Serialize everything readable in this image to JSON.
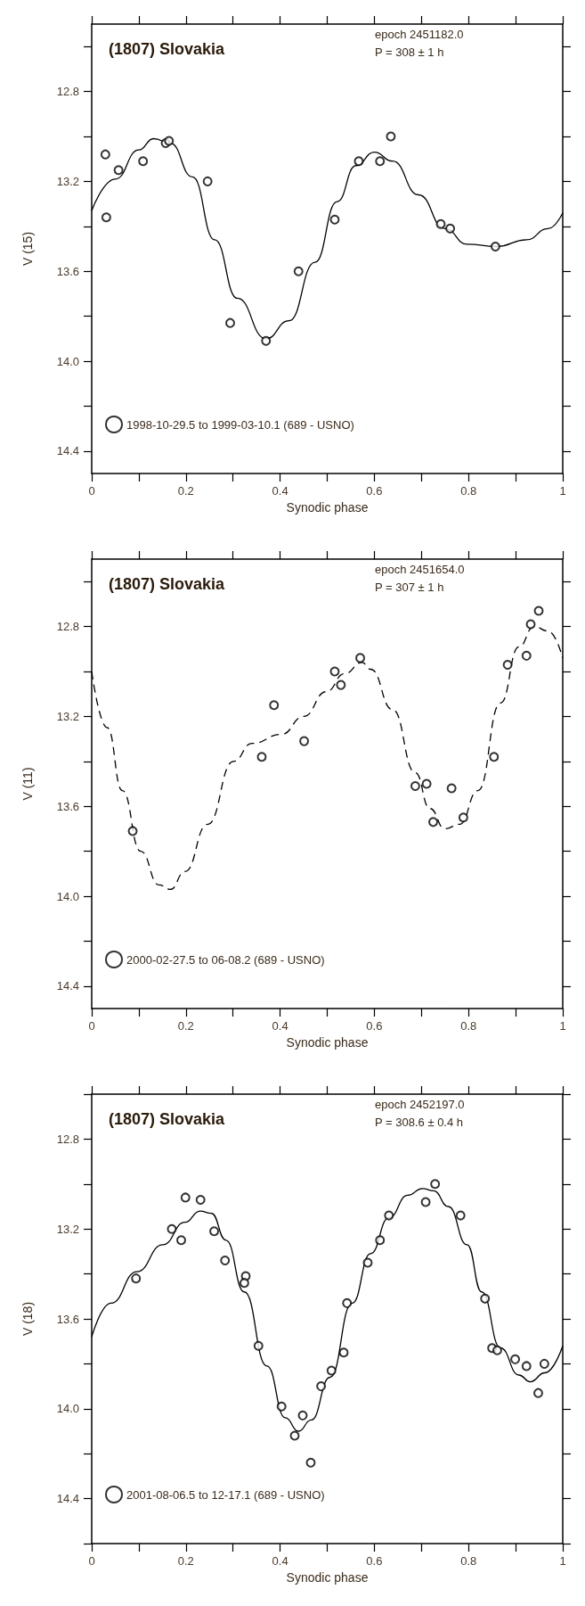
{
  "chart_data": [
    {
      "type": "scatter",
      "title": "(1807) Slovakia",
      "annotations": [
        "epoch 2451182.0",
        "P = 308 ± 1 h"
      ],
      "xlabel": "Synodic phase",
      "ylabel": "V (15)",
      "legend": "bottom left",
      "xlim": [
        0,
        1
      ],
      "xticks": [
        0,
        {
          "value": 0.1,
          "label": null
        },
        0.2,
        {
          "value": 0.3,
          "label": null
        },
        0.4,
        {
          "value": 0.5,
          "label": null
        },
        0.6,
        {
          "value": 0.7,
          "label": null
        },
        0.8,
        {
          "value": 0.9,
          "label": null
        },
        1
      ],
      "ylim": [
        14.5,
        12.5
      ],
      "yticks": [
        {
          "value": 12.6,
          "label": null
        },
        12.8,
        {
          "value": 13.0,
          "label": null
        },
        13.2,
        {
          "value": 13.4,
          "label": null
        },
        13.6,
        {
          "value": 13.8,
          "label": null
        },
        {
          "value": 14.0,
          "label": "14.0"
        },
        {
          "value": 14.2,
          "label": null
        },
        14.4
      ],
      "series": [
        {
          "name": "1998-10-29.5 to 1999-03-10.1 (689 - USNO)",
          "marker": "circle",
          "color": "#000000",
          "x": [
            0.029,
            0.031,
            0.057,
            0.109,
            0.157,
            0.164,
            0.246,
            0.294,
            0.37,
            0.439,
            0.516,
            0.567,
            0.612,
            0.635,
            0.741,
            0.761,
            0.857
          ],
          "values": [
            13.08,
            13.36,
            13.15,
            13.11,
            13.03,
            13.02,
            13.2,
            13.83,
            13.91,
            13.6,
            13.37,
            13.11,
            13.11,
            13.0,
            13.39,
            13.41,
            13.49
          ]
        },
        {
          "type": "line",
          "marker": "none",
          "color": "#000000",
          "line_style": "solid",
          "x": [
            0,
            0.05,
            0.1,
            0.131,
            0.167,
            0.214,
            0.261,
            0.309,
            0.37,
            0.419,
            0.474,
            0.521,
            0.561,
            0.6,
            0.639,
            0.694,
            0.75,
            0.797,
            0.86,
            0.923,
            0.969,
            1
          ],
          "values": [
            13.33,
            13.19,
            13.06,
            13.01,
            13.03,
            13.18,
            13.46,
            13.72,
            13.9,
            13.82,
            13.56,
            13.29,
            13.13,
            13.07,
            13.11,
            13.26,
            13.41,
            13.48,
            13.49,
            13.46,
            13.41,
            13.34
          ]
        }
      ]
    },
    {
      "type": "scatter",
      "title": "(1807) Slovakia",
      "annotations": [
        "epoch 2451654.0",
        "P = 307 ± 1 h"
      ],
      "xlabel": "Synodic phase",
      "ylabel": "V (11)",
      "legend": "bottom left",
      "xlim": [
        0,
        1
      ],
      "xticks": [
        0,
        {
          "value": 0.1,
          "label": null
        },
        0.2,
        {
          "value": 0.3,
          "label": null
        },
        0.4,
        {
          "value": 0.5,
          "label": null
        },
        0.6,
        {
          "value": 0.7,
          "label": null
        },
        0.8,
        {
          "value": 0.9,
          "label": null
        },
        1
      ],
      "ylim": [
        14.5,
        12.5
      ],
      "yticks": [
        {
          "value": 12.6,
          "label": null
        },
        12.8,
        {
          "value": 13.0,
          "label": null
        },
        13.2,
        {
          "value": 13.4,
          "label": null
        },
        13.6,
        {
          "value": 13.8,
          "label": null
        },
        {
          "value": 14.0,
          "label": "14.0"
        },
        {
          "value": 14.2,
          "label": null
        },
        14.4
      ],
      "series": [
        {
          "name": "2000-02-27.5 to 06-08.2 (689 - USNO)",
          "marker": "circle",
          "color": "#000000",
          "x": [
            0.087,
            0.361,
            0.387,
            0.451,
            0.516,
            0.529,
            0.57,
            0.687,
            0.711,
            0.725,
            0.764,
            0.789,
            0.854,
            0.883,
            0.923,
            0.932,
            0.949
          ],
          "values": [
            13.71,
            13.38,
            13.15,
            13.31,
            13.0,
            13.06,
            12.94,
            13.51,
            13.5,
            13.67,
            13.52,
            13.65,
            13.38,
            12.97,
            12.93,
            12.79,
            12.73
          ]
        },
        {
          "type": "line",
          "marker": "none",
          "color": "#000000",
          "line_style": "dashed",
          "x": [
            0,
            0.033,
            0.065,
            0.104,
            0.143,
            0.167,
            0.198,
            0.246,
            0.301,
            0.34,
            0.403,
            0.45,
            0.498,
            0.537,
            0.574,
            0.592,
            0.639,
            0.687,
            0.718,
            0.75,
            0.781,
            0.82,
            0.868,
            0.907,
            0.939,
            0.969,
            1
          ],
          "values": [
            13.0,
            13.25,
            13.53,
            13.8,
            13.95,
            13.97,
            13.89,
            13.68,
            13.4,
            13.32,
            13.28,
            13.2,
            13.09,
            13.01,
            12.96,
            12.99,
            13.17,
            13.45,
            13.61,
            13.7,
            13.68,
            13.53,
            13.14,
            12.89,
            12.8,
            12.82,
            12.94
          ]
        }
      ]
    },
    {
      "type": "scatter",
      "title": "(1807) Slovakia",
      "annotations": [
        "epoch 2452197.0",
        "P = 308.6 ± 0.4 h"
      ],
      "xlabel": "Synodic phase",
      "ylabel": "V (18)",
      "legend": "bottom left",
      "xlim": [
        0,
        1
      ],
      "xticks": [
        0,
        {
          "value": 0.1,
          "label": null
        },
        0.2,
        {
          "value": 0.3,
          "label": null
        },
        0.4,
        {
          "value": 0.5,
          "label": null
        },
        0.6,
        {
          "value": 0.7,
          "label": null
        },
        0.8,
        {
          "value": 0.9,
          "label": null
        },
        1
      ],
      "ylim": [
        14.6,
        12.6
      ],
      "yticks": [
        {
          "value": 12.6,
          "label": null
        },
        12.8,
        {
          "value": 13.0,
          "label": null
        },
        13.2,
        {
          "value": 13.4,
          "label": null
        },
        13.6,
        {
          "value": 13.8,
          "label": null
        },
        {
          "value": 14.0,
          "label": "14.0"
        },
        {
          "value": 14.2,
          "label": null
        },
        14.4,
        {
          "value": 14.6,
          "label": null
        }
      ],
      "series": [
        {
          "name": "2001-08-06.5 to 12-17.1 (689 - USNO)",
          "marker": "circle",
          "color": "#000000",
          "x": [
            0.094,
            0.17,
            0.19,
            0.199,
            0.231,
            0.26,
            0.283,
            0.327,
            0.324,
            0.354,
            0.403,
            0.431,
            0.448,
            0.465,
            0.487,
            0.509,
            0.535,
            0.542,
            0.586,
            0.612,
            0.631,
            0.709,
            0.729,
            0.783,
            0.835,
            0.85,
            0.861,
            0.899,
            0.923,
            0.948,
            0.961
          ],
          "values": [
            13.42,
            13.2,
            13.25,
            13.06,
            13.07,
            13.21,
            13.34,
            13.41,
            13.44,
            13.72,
            13.99,
            14.12,
            14.03,
            14.24,
            13.9,
            13.83,
            13.75,
            13.53,
            13.35,
            13.25,
            13.14,
            13.08,
            13.0,
            13.14,
            13.51,
            13.73,
            13.74,
            13.78,
            13.81,
            13.93,
            13.8
          ]
        },
        {
          "type": "line",
          "marker": "none",
          "color": "#000000",
          "line_style": "solid",
          "x": [
            0,
            0.041,
            0.096,
            0.151,
            0.198,
            0.23,
            0.254,
            0.285,
            0.324,
            0.372,
            0.411,
            0.439,
            0.466,
            0.506,
            0.553,
            0.592,
            0.631,
            0.671,
            0.702,
            0.726,
            0.757,
            0.797,
            0.828,
            0.868,
            0.907,
            0.931,
            0.962,
            1
          ],
          "values": [
            13.68,
            13.53,
            13.39,
            13.27,
            13.17,
            13.12,
            13.13,
            13.25,
            13.48,
            13.81,
            14.04,
            14.1,
            14.05,
            13.86,
            13.53,
            13.31,
            13.15,
            13.05,
            13.02,
            13.03,
            13.1,
            13.27,
            13.48,
            13.73,
            13.85,
            13.88,
            13.84,
            13.72
          ]
        }
      ]
    }
  ]
}
